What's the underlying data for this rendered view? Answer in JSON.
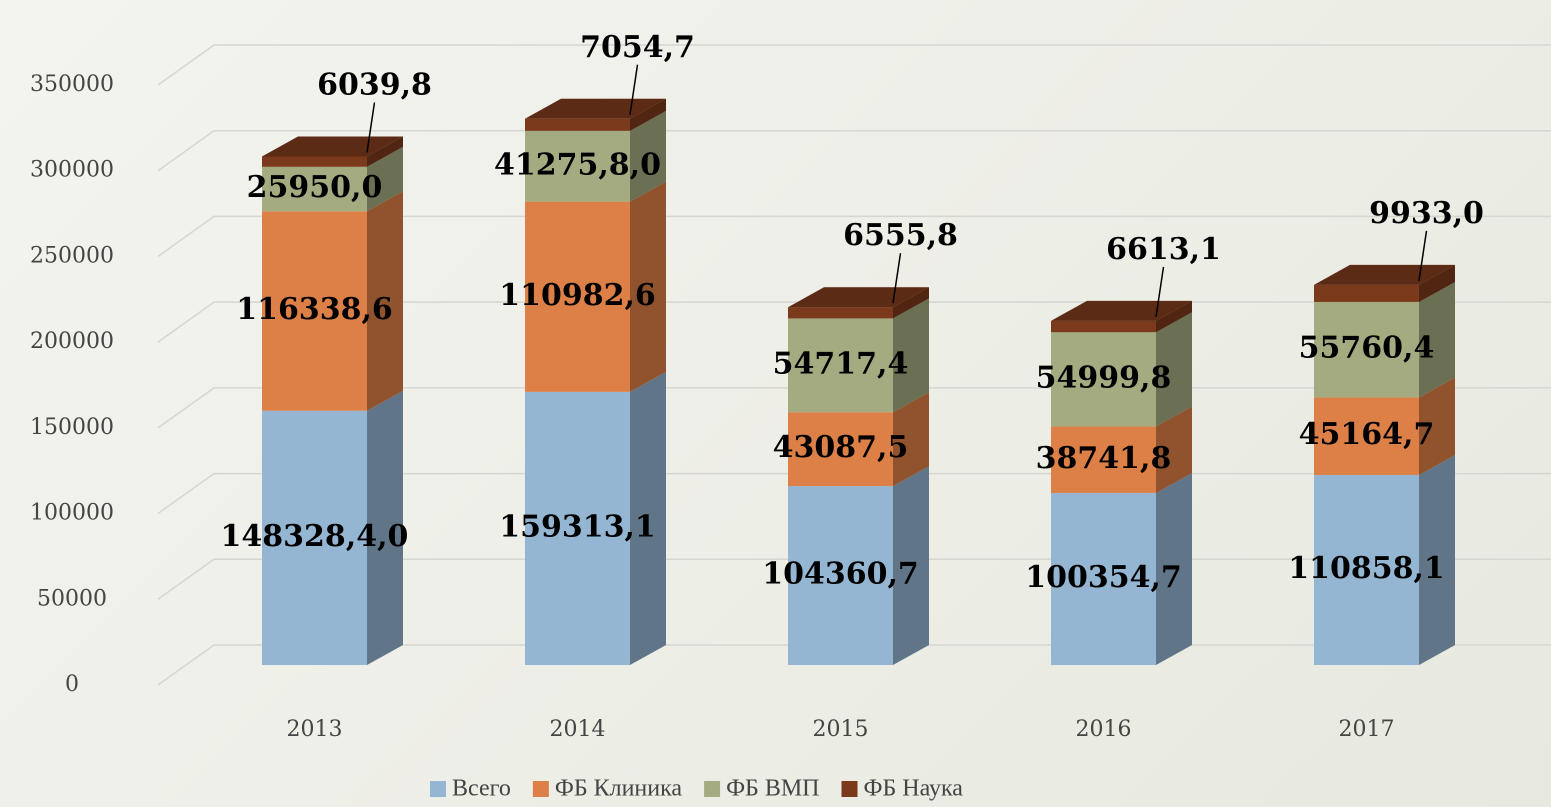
{
  "chart_data": {
    "type": "bar3d_stacked",
    "categories": [
      "2013",
      "2014",
      "2015",
      "2016",
      "2017"
    ],
    "series": [
      {
        "name": "Всего",
        "color": "#94b6d2",
        "values": [
          148328.4,
          159313.1,
          104360.7,
          100354.7,
          110858.1
        ],
        "value_labels": [
          "148328,4,0",
          "159313,1",
          "104360,7",
          "100354,7",
          "110858,1"
        ]
      },
      {
        "name": "ФБ Клиника",
        "color": "#dd8047",
        "values": [
          116338.6,
          110982.6,
          43087.5,
          38741.8,
          45164.7
        ],
        "value_labels": [
          "116338,6",
          "110982,6",
          "43087,5",
          "38741,8",
          "45164,7"
        ]
      },
      {
        "name": "ФБ ВМП",
        "color": "#a5ab81",
        "values": [
          25950.0,
          41275.8,
          54717.4,
          54999.8,
          55760.4
        ],
        "value_labels": [
          "25950,0",
          "41275,8,0",
          "54717,4",
          "54999,8",
          "55760,4"
        ]
      },
      {
        "name": "ФБ Наука",
        "color": "#7b3a1c",
        "values": [
          6039.8,
          7054.7,
          6555.8,
          6613.1,
          9933.0
        ],
        "value_labels": [
          "6039,8",
          "7054,7",
          "6555,8",
          "6613,1",
          "9933,0"
        ]
      }
    ],
    "ylim": [
      0,
      350000
    ],
    "yticks": [
      0,
      50000,
      100000,
      150000,
      200000,
      250000,
      300000,
      350000
    ],
    "grid": true,
    "legend": "bottom"
  }
}
